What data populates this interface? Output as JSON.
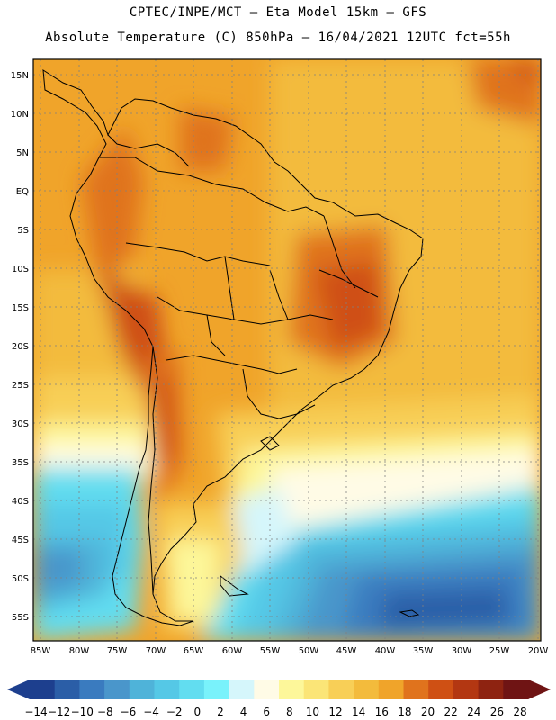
{
  "header": {
    "line1": "CPTEC/INPE/MCT –  Eta Model 15km – GFS",
    "line2": "Absolute Temperature (C) 850hPa – 16/04/2021 12UTC fct=55h"
  },
  "map": {
    "lat_labels": [
      "15N",
      "10N",
      "5N",
      "EQ",
      "5S",
      "10S",
      "15S",
      "20S",
      "25S",
      "30S",
      "35S",
      "40S",
      "45S",
      "50S",
      "55S"
    ],
    "lon_labels": [
      "85W",
      "80W",
      "75W",
      "70W",
      "65W",
      "60W",
      "55W",
      "50W",
      "45W",
      "40W",
      "35W",
      "30W",
      "25W",
      "20W"
    ]
  },
  "colorbar": {
    "colors": [
      "#1d3f8e",
      "#2b5ea7",
      "#3a7bbf",
      "#4a96cb",
      "#4fb3d9",
      "#55c8e6",
      "#62ddf0",
      "#79f2fb",
      "#d5f6fb",
      "#fffbe6",
      "#fdf79a",
      "#fbe577",
      "#f8cf57",
      "#f3bb3c",
      "#f0a42a",
      "#e0731d",
      "#cf5014",
      "#b33712",
      "#8e2311",
      "#6f1414"
    ],
    "tick_labels": [
      "-14",
      "-12",
      "-10",
      "-8",
      "-6",
      "-4",
      "-2",
      "0",
      "2",
      "4",
      "6",
      "8",
      "10",
      "12",
      "14",
      "16",
      "18",
      "20",
      "22",
      "24",
      "26",
      "28"
    ]
  }
}
